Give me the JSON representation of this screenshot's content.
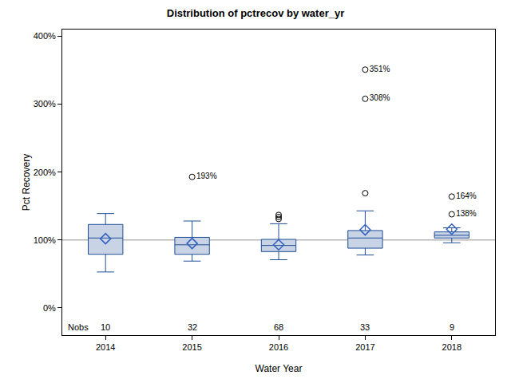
{
  "chart_data": {
    "type": "box",
    "title": "Distribution of pctrecov by water_yr",
    "x_label": "Water Year",
    "y_label": "Pct Recovery",
    "categories": [
      "2014",
      "2015",
      "2016",
      "2017",
      "2018"
    ],
    "q1": [
      79,
      79,
      83,
      88,
      103
    ],
    "median": [
      103,
      93,
      92,
      103,
      107
    ],
    "q3": [
      123,
      104,
      101,
      114,
      112
    ],
    "whisker_low": [
      53,
      69,
      71,
      78,
      96
    ],
    "whisker_high": [
      139,
      128,
      124,
      143,
      118
    ],
    "mean": [
      102,
      95,
      93,
      115,
      116
    ],
    "outliers": [
      [],
      [
        193
      ],
      [
        131,
        134,
        137
      ],
      [
        169,
        308,
        351
      ],
      [
        138,
        164
      ]
    ],
    "outlier_labels": [
      [],
      [
        "193%"
      ],
      [
        null,
        null,
        null
      ],
      [
        null,
        "308%",
        "351%"
      ],
      [
        "138%",
        "164%"
      ]
    ],
    "nobs_label": "Nobs",
    "nobs": [
      10,
      32,
      68,
      33,
      9
    ],
    "reference_line": 100,
    "color": "#c9d3e6",
    "ylim": [
      -40,
      410
    ],
    "yticks": [
      {
        "value": 0,
        "label": "0%"
      },
      {
        "value": 100,
        "label": "100%"
      },
      {
        "value": 200,
        "label": "200%"
      },
      {
        "value": 300,
        "label": "300%"
      },
      {
        "value": 400,
        "label": "400%"
      }
    ],
    "grid": false
  }
}
